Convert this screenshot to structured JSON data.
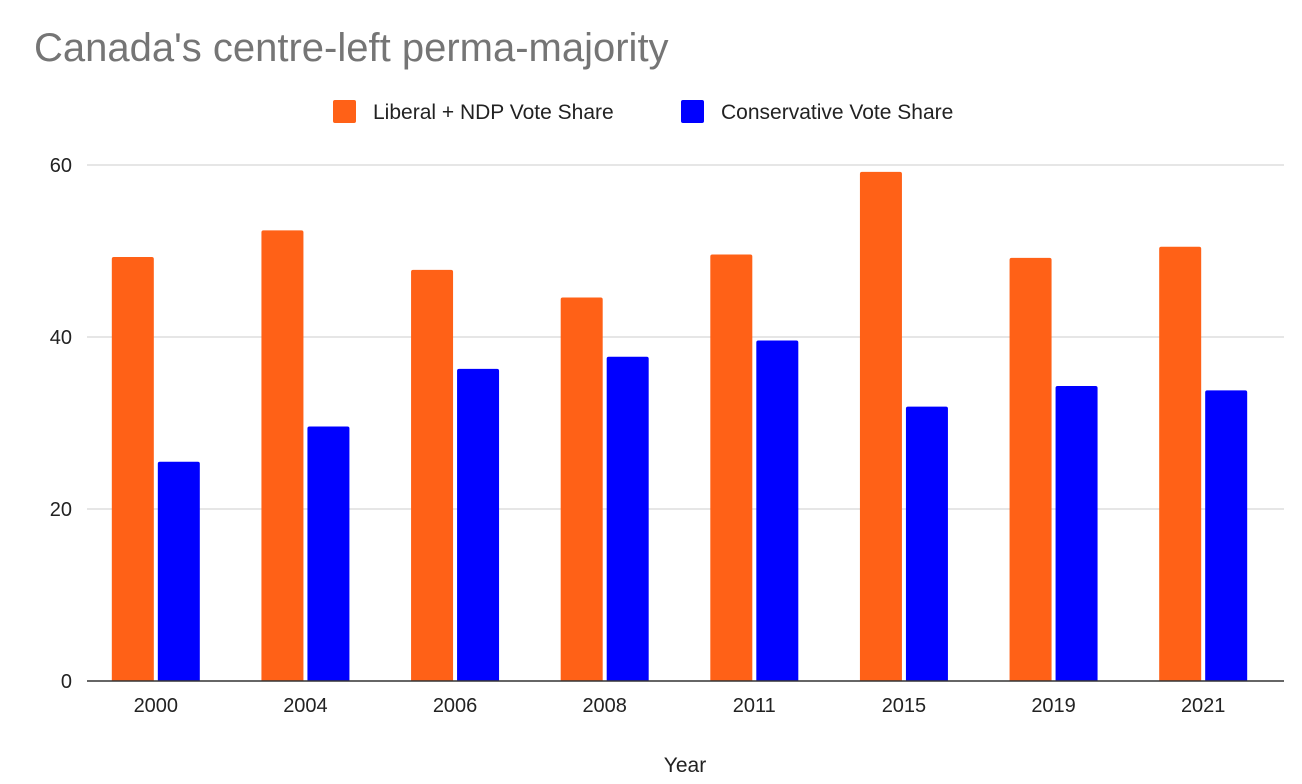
{
  "chart_data": {
    "type": "bar",
    "title": "Canada's centre-left perma-majority",
    "xlabel": "Year",
    "ylabel": "",
    "categories": [
      "2000",
      "2004",
      "2006",
      "2008",
      "2011",
      "2015",
      "2019",
      "2021"
    ],
    "series": [
      {
        "name": "Liberal + NDP Vote Share",
        "color": "#ff6117",
        "values": [
          49.3,
          52.4,
          47.8,
          44.6,
          49.6,
          59.2,
          49.2,
          50.5
        ]
      },
      {
        "name": "Conservative Vote Share",
        "color": "#0000ff",
        "values": [
          25.5,
          29.6,
          36.3,
          37.7,
          39.6,
          31.9,
          34.3,
          33.8
        ]
      }
    ],
    "ylim": [
      0,
      60
    ],
    "yticks": [
      0,
      20,
      40,
      60
    ],
    "grid": true,
    "legend_position": "top"
  }
}
